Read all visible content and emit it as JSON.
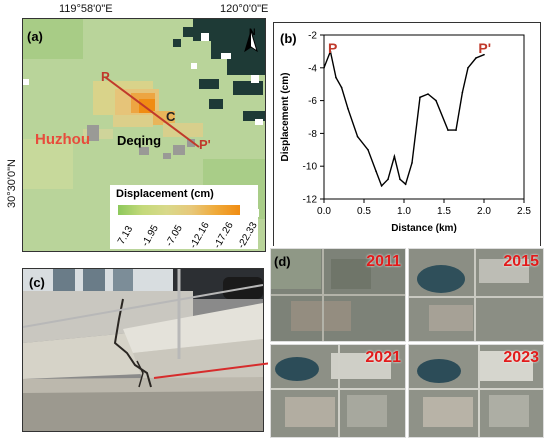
{
  "panel_a": {
    "label": "(a)",
    "top_coords": [
      "119°58'0\"E",
      "120°0'0\"E"
    ],
    "left_coord": "30°30'0\"N",
    "north": "N",
    "place_huzhou": "Huzhou",
    "place_deqing": "Deqing",
    "point_p": "P",
    "point_p_prime": "P'",
    "point_c": "C",
    "legend_title": "Displacement (cm)",
    "legend_values": [
      "7.13",
      "-1.95",
      "-7.05",
      "-12.16",
      "-17.26",
      "-22.33"
    ],
    "colors": {
      "high": "#8dc85b",
      "low": "#f08c12",
      "profile_line": "#c0392b"
    }
  },
  "panel_b": {
    "label": "(b)",
    "point_p": "P",
    "point_p_prime": "P'",
    "chart_data": {
      "type": "line",
      "xlabel": "Distance (km)",
      "ylabel": "Displacement (cm)",
      "xlim": [
        0,
        2.5
      ],
      "ylim": [
        -12,
        -2
      ],
      "xticks": [
        "0.0",
        "0.5",
        "1.0",
        "1.5",
        "2.0",
        "2.5"
      ],
      "yticks": [
        "-2",
        "-4",
        "-6",
        "-8",
        "-10",
        "-12"
      ],
      "x": [
        0.0,
        0.08,
        0.15,
        0.22,
        0.3,
        0.42,
        0.55,
        0.65,
        0.72,
        0.8,
        0.88,
        0.95,
        1.02,
        1.1,
        1.2,
        1.3,
        1.4,
        1.55,
        1.65,
        1.73,
        1.8,
        1.9,
        2.0
      ],
      "values": [
        -4.0,
        -3.0,
        -4.6,
        -5.2,
        -6.5,
        -8.2,
        -9.0,
        -10.3,
        -11.2,
        -10.8,
        -9.4,
        -10.8,
        -11.1,
        -9.8,
        -5.8,
        -5.6,
        -6.0,
        -7.8,
        -7.8,
        -5.5,
        -4.0,
        -3.4,
        -3.2
      ]
    }
  },
  "panel_c": {
    "label": "(c)"
  },
  "panel_d": {
    "label": "(d)",
    "years": [
      "2011",
      "2015",
      "2021",
      "2023"
    ]
  }
}
